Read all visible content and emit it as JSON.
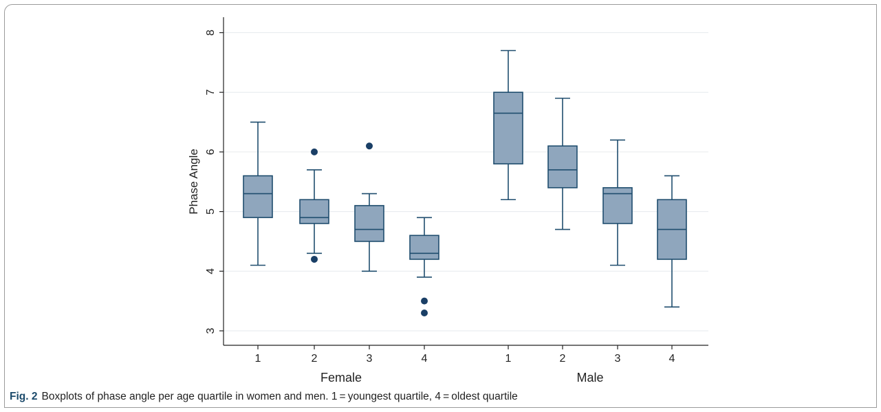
{
  "caption": {
    "label": "Fig. 2",
    "text": "Boxplots of phase angle per age quartile in women and men. 1 = youngest quartile, 4 = oldest quartile"
  },
  "colors": {
    "box_fill": "#8fa6bd",
    "box_stroke": "#1f4d6e",
    "outlier": "#1a3f66",
    "grid": "#e6eaee",
    "axis": "#222222"
  },
  "chart_data": {
    "type": "boxplot",
    "title": "",
    "ylabel": "Phase Angle",
    "ylim": [
      2.8,
      8.3
    ],
    "yticks": [
      3,
      4,
      5,
      6,
      7,
      8
    ],
    "grid": true,
    "groups": [
      {
        "name": "Female",
        "boxes": [
          {
            "label": "1",
            "whisker_low": 4.1,
            "q1": 4.9,
            "median": 5.3,
            "q3": 5.6,
            "whisker_high": 6.5,
            "outliers": []
          },
          {
            "label": "2",
            "whisker_low": 4.3,
            "q1": 4.8,
            "median": 4.9,
            "q3": 5.2,
            "whisker_high": 5.7,
            "outliers": [
              6.0,
              4.2
            ]
          },
          {
            "label": "3",
            "whisker_low": 4.0,
            "q1": 4.5,
            "median": 4.7,
            "q3": 5.1,
            "whisker_high": 5.3,
            "outliers": [
              6.1
            ]
          },
          {
            "label": "4",
            "whisker_low": 3.9,
            "q1": 4.2,
            "median": 4.3,
            "q3": 4.6,
            "whisker_high": 4.9,
            "outliers": [
              3.5,
              3.3
            ]
          }
        ]
      },
      {
        "name": "Male",
        "boxes": [
          {
            "label": "1",
            "whisker_low": 5.2,
            "q1": 5.8,
            "median": 6.65,
            "q3": 7.0,
            "whisker_high": 7.7,
            "outliers": []
          },
          {
            "label": "2",
            "whisker_low": 4.7,
            "q1": 5.4,
            "median": 5.7,
            "q3": 6.1,
            "whisker_high": 6.9,
            "outliers": []
          },
          {
            "label": "3",
            "whisker_low": 4.1,
            "q1": 4.8,
            "median": 5.3,
            "q3": 5.4,
            "whisker_high": 6.2,
            "outliers": []
          },
          {
            "label": "4",
            "whisker_low": 3.4,
            "q1": 4.2,
            "median": 4.7,
            "q3": 5.2,
            "whisker_high": 5.6,
            "outliers": []
          }
        ]
      }
    ]
  }
}
